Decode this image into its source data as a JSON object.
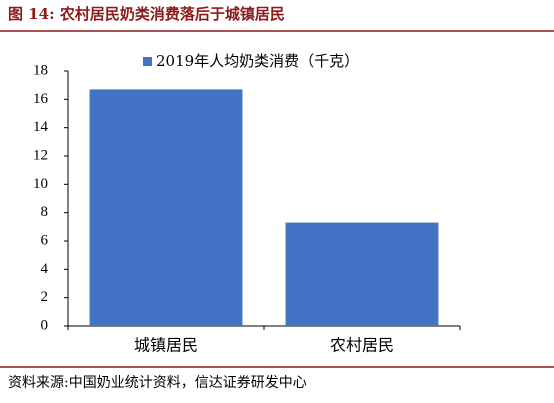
{
  "chart_data": {
    "type": "bar",
    "title": "图 14: 农村居民奶类消费落后于城镇居民",
    "categories": [
      "城镇居民",
      "农村居民"
    ],
    "series": [
      {
        "name": "2019年人均奶类消费（千克）",
        "color": "#4472c4",
        "values": [
          16.7,
          7.3
        ]
      }
    ],
    "ylim": [
      0,
      18
    ],
    "yticks": [
      0,
      2,
      4,
      6,
      8,
      10,
      12,
      14,
      16,
      18
    ],
    "legend": "top",
    "source": "资料来源:中国奶业统计资料，信达证券研发中心"
  }
}
